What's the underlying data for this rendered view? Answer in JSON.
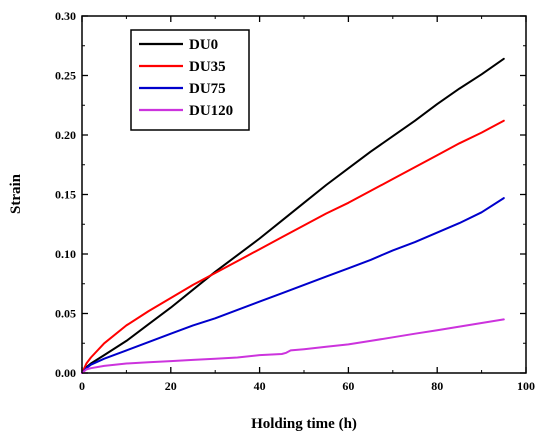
{
  "chart_data": {
    "type": "line",
    "xlabel": "Holding time (h)",
    "ylabel": "Strain",
    "xlim": [
      0,
      100
    ],
    "ylim": [
      0,
      0.3
    ],
    "xticks": [
      "0",
      "20",
      "40",
      "60",
      "80",
      "100"
    ],
    "yticks": [
      "0.00",
      "0.05",
      "0.10",
      "0.15",
      "0.20",
      "0.25",
      "0.30"
    ],
    "legend_position": "top-left",
    "series": [
      {
        "name": "DU0",
        "color": "#000000",
        "x": [
          0,
          1,
          2,
          5,
          10,
          15,
          20,
          25,
          30,
          35,
          40,
          45,
          50,
          55,
          60,
          65,
          70,
          75,
          80,
          85,
          90,
          95
        ],
        "y": [
          0,
          0.005,
          0.008,
          0.015,
          0.027,
          0.041,
          0.055,
          0.07,
          0.085,
          0.099,
          0.113,
          0.128,
          0.143,
          0.158,
          0.172,
          0.186,
          0.199,
          0.212,
          0.226,
          0.239,
          0.251,
          0.264
        ]
      },
      {
        "name": "DU35",
        "color": "#ff0000",
        "x": [
          0,
          1,
          2,
          5,
          10,
          15,
          20,
          25,
          30,
          35,
          40,
          45,
          50,
          55,
          60,
          65,
          70,
          75,
          80,
          85,
          90,
          95
        ],
        "y": [
          0,
          0.008,
          0.013,
          0.025,
          0.04,
          0.052,
          0.063,
          0.074,
          0.084,
          0.094,
          0.104,
          0.114,
          0.124,
          0.134,
          0.143,
          0.153,
          0.163,
          0.173,
          0.183,
          0.193,
          0.202,
          0.212
        ]
      },
      {
        "name": "DU75",
        "color": "#0000cc",
        "x": [
          0,
          1,
          2,
          5,
          10,
          15,
          20,
          25,
          30,
          35,
          40,
          45,
          50,
          55,
          60,
          65,
          70,
          75,
          80,
          85,
          90,
          95
        ],
        "y": [
          0,
          0.004,
          0.007,
          0.012,
          0.019,
          0.026,
          0.033,
          0.04,
          0.046,
          0.053,
          0.06,
          0.067,
          0.074,
          0.081,
          0.088,
          0.095,
          0.103,
          0.11,
          0.118,
          0.126,
          0.135,
          0.147
        ]
      },
      {
        "name": "DU120",
        "color": "#cc33dd",
        "x": [
          0,
          1,
          2,
          5,
          10,
          15,
          20,
          25,
          30,
          35,
          40,
          45,
          46,
          47,
          50,
          55,
          60,
          65,
          70,
          75,
          80,
          85,
          90,
          95
        ],
        "y": [
          0,
          0.003,
          0.004,
          0.006,
          0.008,
          0.009,
          0.01,
          0.011,
          0.012,
          0.013,
          0.015,
          0.016,
          0.017,
          0.019,
          0.02,
          0.022,
          0.024,
          0.027,
          0.03,
          0.033,
          0.036,
          0.039,
          0.042,
          0.045
        ]
      }
    ]
  }
}
